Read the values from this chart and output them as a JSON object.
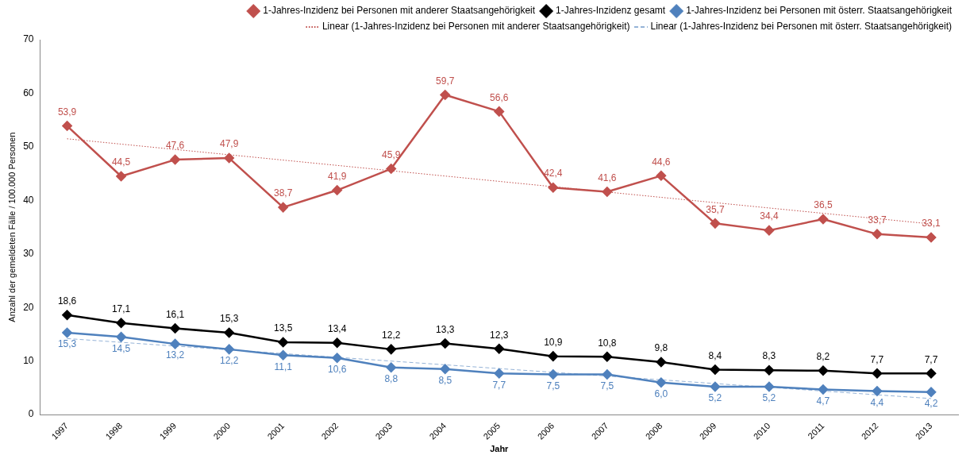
{
  "chart_data": {
    "type": "line",
    "xlabel": "Jahr",
    "ylabel": "Anzahl der gemeldeten Fälle / 100.000 Personen",
    "categories": [
      "1997",
      "1998",
      "1999",
      "2000",
      "2001",
      "2002",
      "2003",
      "2004",
      "2005",
      "2006",
      "2007",
      "2008",
      "2009",
      "2010",
      "2011",
      "2012",
      "2013"
    ],
    "ylim": [
      0,
      70
    ],
    "yticks": [
      0,
      10,
      20,
      30,
      40,
      50,
      60,
      70
    ],
    "legend": "top right",
    "marker": "diamond",
    "line_style": "solid",
    "series": [
      {
        "name": "1-Jahres-Inzidenz bei Personen mit anderer Staatsangehörigkeit",
        "color": "#c0504d",
        "values": [
          53.9,
          44.5,
          47.6,
          47.9,
          38.7,
          41.9,
          45.9,
          59.7,
          56.6,
          42.4,
          41.6,
          44.6,
          35.7,
          34.4,
          36.5,
          33.7,
          33.1
        ],
        "value_labels": [
          "53,9",
          "44,5",
          "47,6",
          "47,9",
          "38,7",
          "41,9",
          "45,9",
          "59,7",
          "56,6",
          "42,4",
          "41,6",
          "44,6",
          "35,7",
          "34,4",
          "36,5",
          "33,7",
          "33,1"
        ]
      },
      {
        "name": "1-Jahres-Inzidenz gesamt",
        "color": "#000000",
        "values": [
          18.6,
          17.1,
          16.1,
          15.3,
          13.5,
          13.4,
          12.2,
          13.3,
          12.3,
          10.9,
          10.8,
          9.8,
          8.4,
          8.3,
          8.2,
          7.7,
          7.7
        ],
        "value_labels": [
          "18,6",
          "17,1",
          "16,1",
          "15,3",
          "13,5",
          "13,4",
          "12,2",
          "13,3",
          "12,3",
          "10,9",
          "10,8",
          "9,8",
          "8,4",
          "8,3",
          "8,2",
          "7,7",
          "7,7"
        ]
      },
      {
        "name": "1-Jahres-Inzidenz bei Personen mit österr. Staatsangehörigkeit",
        "color": "#4f81bd",
        "values": [
          15.3,
          14.5,
          13.2,
          12.2,
          11.1,
          10.6,
          8.8,
          8.5,
          7.7,
          7.5,
          7.5,
          6.0,
          5.2,
          5.2,
          4.7,
          4.4,
          4.2
        ],
        "value_labels": [
          "15,3",
          "14,5",
          "13,2",
          "12,2",
          "11,1",
          "10,6",
          "8,8",
          "8,5",
          "7,7",
          "7,5",
          "7,5",
          "6,0",
          "5,2",
          "5,2",
          "4,7",
          "4,4",
          "4,2"
        ]
      },
      {
        "name": "Linear (1-Jahres-Inzidenz bei Personen mit anderer Staatsangehörigkeit)",
        "color": "#c0504d",
        "marker": "none",
        "line_style": "dotted",
        "values": [
          51.5,
          null,
          null,
          null,
          null,
          null,
          null,
          null,
          null,
          null,
          null,
          null,
          null,
          null,
          null,
          null,
          35.6
        ]
      },
      {
        "name": "Linear (1-Jahres-Inzidenz bei Personen mit österr. Staatsangehörigkeit)",
        "color": "#95b3d7",
        "marker": "none",
        "line_style": "dashed",
        "values": [
          14.2,
          null,
          null,
          null,
          null,
          null,
          null,
          null,
          null,
          null,
          null,
          null,
          null,
          null,
          null,
          null,
          3.0
        ]
      }
    ]
  }
}
